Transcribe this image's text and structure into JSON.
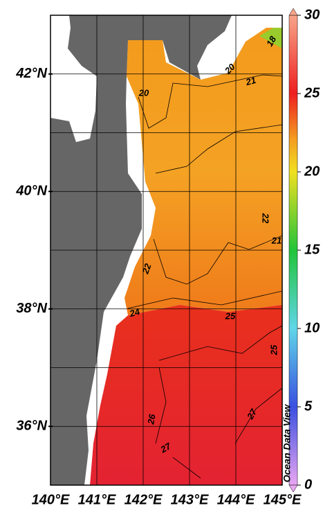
{
  "map": {
    "xlim": [
      140,
      145
    ],
    "ylim": [
      35,
      43
    ],
    "xticks": [
      {
        "value": 140,
        "label": "140°E"
      },
      {
        "value": 141,
        "label": "141°E"
      },
      {
        "value": 142,
        "label": "142°E"
      },
      {
        "value": 143,
        "label": "143°E"
      },
      {
        "value": 144,
        "label": "144°E"
      },
      {
        "value": 145,
        "label": "145°E"
      }
    ],
    "yticks": [
      {
        "value": 36,
        "label": "36°N"
      },
      {
        "value": 38,
        "label": "38°N"
      },
      {
        "value": 40,
        "label": "40°N"
      },
      {
        "value": 42,
        "label": "42°N"
      }
    ],
    "ygrid": [
      36,
      37,
      38,
      39,
      40,
      41,
      42
    ],
    "contour_labels": [
      "18",
      "20",
      "20",
      "21",
      "22",
      "21",
      "22",
      "24",
      "25",
      "25",
      "26",
      "27",
      "27"
    ],
    "colorbar": {
      "lim": [
        0,
        30
      ],
      "ticks": [
        0,
        5,
        10,
        15,
        20,
        25,
        30
      ],
      "stops": [
        {
          "value": 0,
          "color": "#e9a6f2"
        },
        {
          "value": 5,
          "color": "#3a4fe0"
        },
        {
          "value": 10,
          "color": "#5fd6e8"
        },
        {
          "value": 15,
          "color": "#22c43a"
        },
        {
          "value": 20,
          "color": "#f0e020"
        },
        {
          "value": 22,
          "color": "#f4a020"
        },
        {
          "value": 25,
          "color": "#ee2020"
        },
        {
          "value": 30,
          "color": "#f7a58a"
        }
      ]
    },
    "watermark": "Ocean Data View"
  }
}
